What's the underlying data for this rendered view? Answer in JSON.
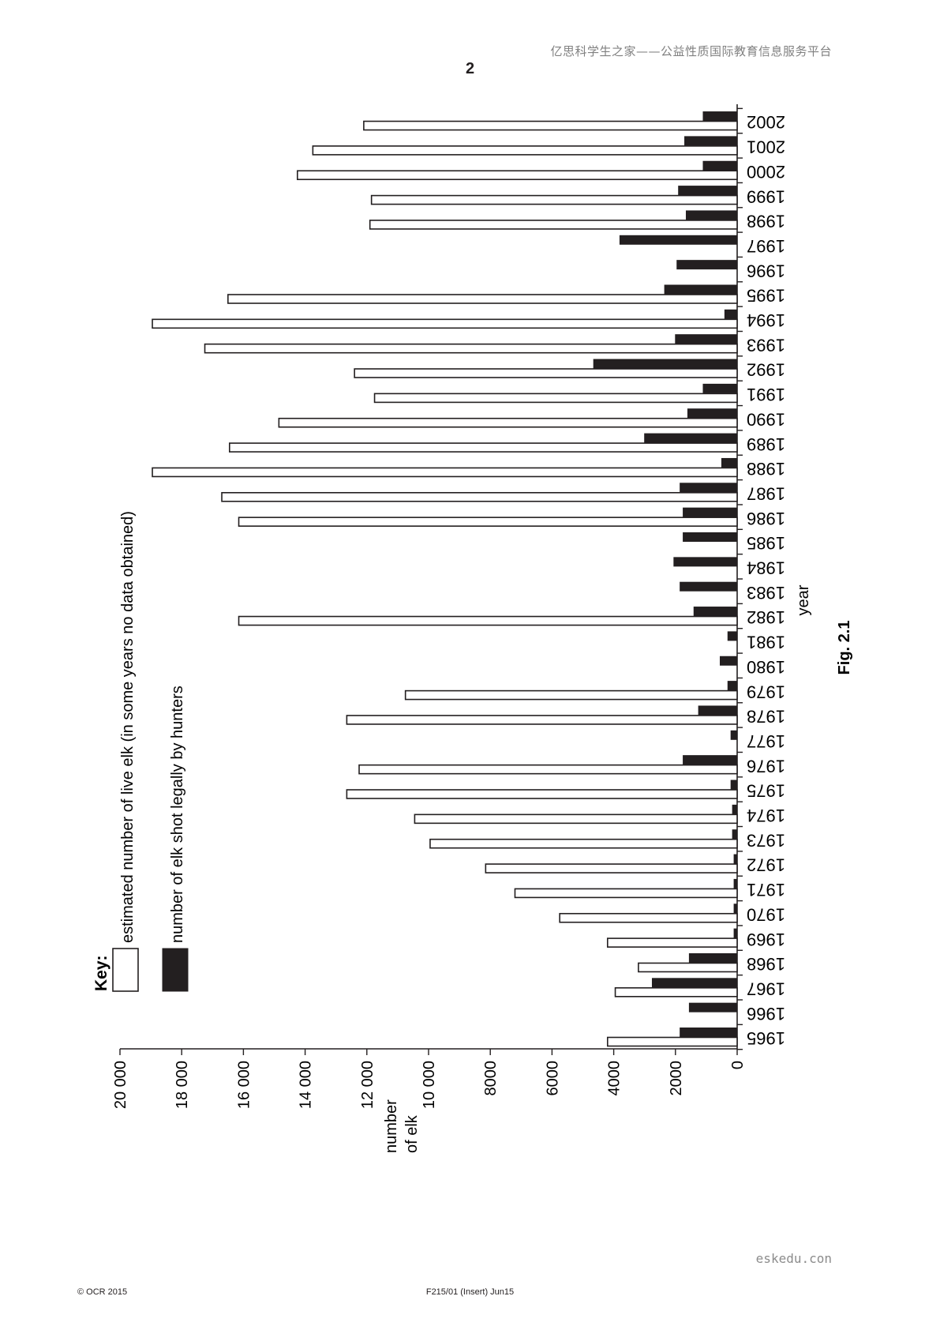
{
  "header": {
    "site": "亿思科学生之家——公益性质国际教育信息服务平台",
    "page_number": "2"
  },
  "chart_data": {
    "type": "bar",
    "orientation": "rotated-90-clockwise",
    "xlabel": "year",
    "ylabel": "number of elk",
    "ylim": [
      0,
      20000
    ],
    "yticks": [
      0,
      2000,
      4000,
      6000,
      8000,
      10000,
      12000,
      14000,
      16000,
      18000,
      20000
    ],
    "ytick_labels": [
      "0",
      "2000",
      "4000",
      "6000",
      "8000",
      "10 000",
      "12 000",
      "14 000",
      "16 000",
      "18 000",
      "20 000"
    ],
    "categories": [
      "1965",
      "1966",
      "1967",
      "1968",
      "1969",
      "1970",
      "1971",
      "1972",
      "1973",
      "1974",
      "1975",
      "1976",
      "1977",
      "1978",
      "1979",
      "1980",
      "1981",
      "1982",
      "1983",
      "1984",
      "1985",
      "1986",
      "1987",
      "1988",
      "1989",
      "1990",
      "1991",
      "1992",
      "1993",
      "1994",
      "1995",
      "1996",
      "1997",
      "1998",
      "1999",
      "2000",
      "2001",
      "2002"
    ],
    "key_title": "Key:",
    "series": [
      {
        "name": "estimated number of live elk (in some years no data obtained)",
        "fill": "#ffffff",
        "values": [
          4200,
          null,
          3950,
          3200,
          4200,
          5750,
          7200,
          8150,
          9950,
          10450,
          12650,
          12250,
          null,
          12650,
          10750,
          null,
          null,
          16150,
          null,
          null,
          null,
          16150,
          16700,
          18950,
          16450,
          14850,
          11750,
          12400,
          17250,
          18950,
          16500,
          null,
          null,
          11900,
          11850,
          14250,
          13750,
          12100
        ]
      },
      {
        "name": "number of elk shot legally by hunters",
        "fill": "#231f20",
        "values": [
          1850,
          1550,
          2750,
          1550,
          100,
          100,
          100,
          100,
          150,
          150,
          200,
          1750,
          200,
          1250,
          300,
          550,
          300,
          1400,
          1850,
          2050,
          1750,
          1750,
          1850,
          500,
          3000,
          1600,
          1100,
          4650,
          2000,
          400,
          2350,
          1950,
          3800,
          1650,
          1900,
          1100,
          1700,
          1100
        ]
      }
    ],
    "caption": "Fig. 2.1",
    "grid": false,
    "legend_position": "top-left"
  },
  "watermark": "eskedu.con",
  "footer": {
    "copyright": "© OCR 2015",
    "code": "F215/01 (Insert) Jun15"
  }
}
